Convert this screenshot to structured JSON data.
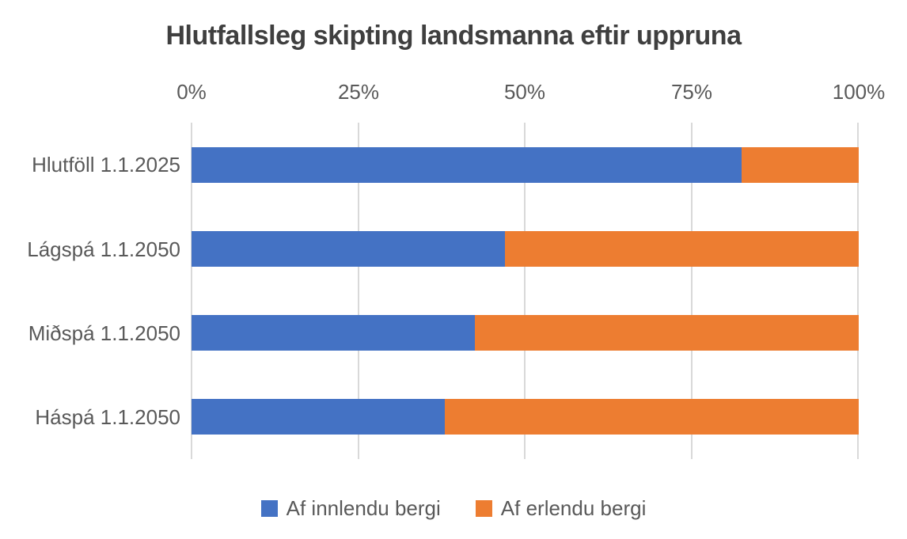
{
  "chart_data": {
    "type": "bar",
    "orientation": "horizontal",
    "stacked": true,
    "title": "Hlutfallsleg skipting landsmanna eftir uppruna",
    "categories": [
      "Hlutföll 1.1.2025",
      "Lágspá 1.1.2050",
      "Miðspá 1.1.2050",
      "Háspá 1.1.2050"
    ],
    "series": [
      {
        "name": "Af innlendu bergi",
        "color": "#4472C4",
        "values": [
          82.5,
          47,
          42.5,
          38
        ]
      },
      {
        "name": "Af erlendu bergi",
        "color": "#ED7D31",
        "values": [
          17.5,
          53,
          57.5,
          62
        ]
      }
    ],
    "x_ticks": [
      "0%",
      "25%",
      "50%",
      "75%",
      "100%"
    ],
    "xlim": [
      0,
      100
    ],
    "x_axis_position": "top",
    "legend_position": "bottom",
    "grid": "vertical-only",
    "gridline_color": "#D9D9D9",
    "axis_text_color": "#595959",
    "title_color": "#3F3F3F",
    "background_color": "#FFFFFF"
  }
}
